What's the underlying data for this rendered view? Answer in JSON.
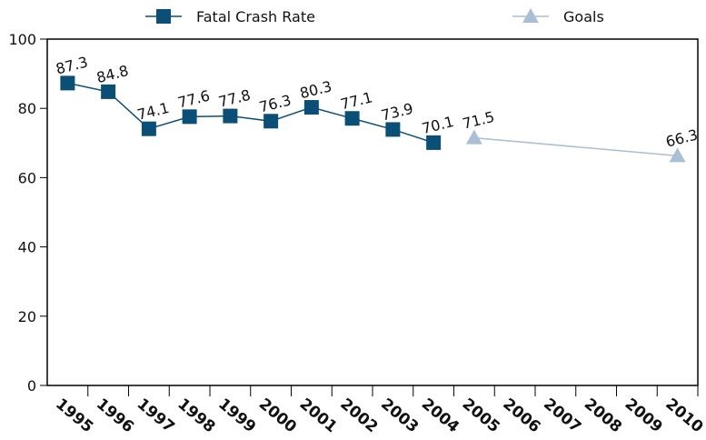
{
  "chart_data": {
    "type": "line",
    "series": [
      {
        "name": "Fatal Crash Rate",
        "color": "#0b4f77",
        "marker": "square",
        "x": [
          1995,
          1996,
          1997,
          1998,
          1999,
          2000,
          2001,
          2002,
          2003,
          2004
        ],
        "values": [
          87.3,
          84.8,
          74.1,
          77.6,
          77.8,
          76.3,
          80.3,
          77.1,
          73.9,
          70.1
        ]
      },
      {
        "name": "Goals",
        "color": "#a9bfd4",
        "marker": "triangle",
        "x": [
          2005,
          2010
        ],
        "values": [
          71.5,
          66.3
        ]
      }
    ],
    "xlim": [
      1994.5,
      2010.5
    ],
    "xticks": [
      1995,
      1996,
      1997,
      1998,
      1999,
      2000,
      2001,
      2002,
      2003,
      2004,
      2005,
      2006,
      2007,
      2008,
      2009,
      2010
    ],
    "ylim": [
      0,
      100
    ],
    "yticks": [
      0,
      20,
      40,
      60,
      80,
      100
    ],
    "grid": false,
    "legend": "top"
  }
}
